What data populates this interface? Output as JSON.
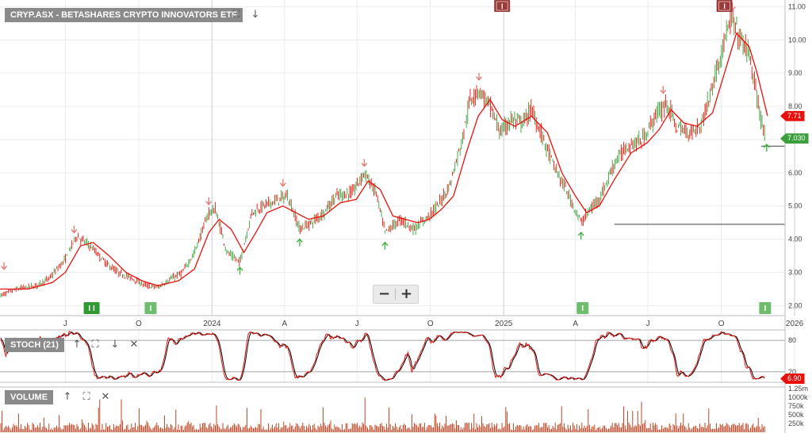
{
  "panels": {
    "price": {
      "title": "CRYP.ASX - BETASHARES CRYPTO INNOVATORS ETF"
    },
    "stoch": {
      "title": "STOCH (21)"
    },
    "volume": {
      "title": "VOLUME"
    }
  },
  "price_tags": {
    "sma": {
      "text": "7.71",
      "color": "#e8120c"
    },
    "last": {
      "text": "7.030",
      "color": "#3a9e3a"
    }
  },
  "stoch_tag": {
    "text": "6.90",
    "color": "#e8120c"
  },
  "icons": [
    "fullscreen-icon",
    "arrow-down-icon",
    "arrow-up-icon",
    "close-icon",
    "minus-icon",
    "plus-icon"
  ],
  "zoom": {
    "minus": "−",
    "plus": "+"
  },
  "colors": {
    "up": "#3a9e3a",
    "down": "#e8120c",
    "sma": "#e8120c",
    "stoch_k": "#e8120c",
    "stoch_d": "#000000",
    "volume": "#b8300a",
    "grid": "#ececec"
  },
  "chart_data": {
    "type": "line",
    "x_range": [
      "2023-04-10",
      "2025-12-20"
    ],
    "x_ticks": [
      {
        "label": "J",
        "date": "2023-07-01"
      },
      {
        "label": "O",
        "date": "2023-10-01"
      },
      {
        "label": "2024",
        "date": "2024-01-01"
      },
      {
        "label": "A",
        "date": "2024-04-01"
      },
      {
        "label": "J",
        "date": "2024-07-01"
      },
      {
        "label": "O",
        "date": "2024-10-01"
      },
      {
        "label": "2025",
        "date": "2025-01-01"
      },
      {
        "label": "A",
        "date": "2025-04-01"
      },
      {
        "label": "J",
        "date": "2025-07-01"
      },
      {
        "label": "O",
        "date": "2025-10-01"
      },
      {
        "label": "2026",
        "date": "2026-01-01"
      }
    ],
    "y_ticks": [
      "2.00",
      "3.00",
      "4.00",
      "5.00",
      "6.00",
      "7.00",
      "8.00",
      "9.00",
      "10.00",
      "11.00"
    ],
    "ylim": [
      1.7,
      11.2
    ],
    "price_path": [
      [
        "2023-04-10",
        2.3
      ],
      [
        "2023-05-01",
        2.5
      ],
      [
        "2023-05-25",
        2.6
      ],
      [
        "2023-06-10",
        2.8
      ],
      [
        "2023-07-01",
        3.4
      ],
      [
        "2023-07-15",
        4.1
      ],
      [
        "2023-08-01",
        3.8
      ],
      [
        "2023-08-20",
        3.3
      ],
      [
        "2023-09-05",
        3.0
      ],
      [
        "2023-09-25",
        2.8
      ],
      [
        "2023-10-10",
        2.6
      ],
      [
        "2023-10-25",
        2.55
      ],
      [
        "2023-11-10",
        2.8
      ],
      [
        "2023-11-25",
        3.0
      ],
      [
        "2023-12-10",
        3.6
      ],
      [
        "2023-12-28",
        4.8
      ],
      [
        "2024-01-05",
        4.9
      ],
      [
        "2024-01-20",
        3.6
      ],
      [
        "2024-02-05",
        3.3
      ],
      [
        "2024-02-20",
        4.8
      ],
      [
        "2024-03-05",
        5.0
      ],
      [
        "2024-03-25",
        5.2
      ],
      [
        "2024-04-05",
        5.3
      ],
      [
        "2024-04-20",
        4.3
      ],
      [
        "2024-05-05",
        4.5
      ],
      [
        "2024-05-20",
        4.8
      ],
      [
        "2024-06-05",
        5.3
      ],
      [
        "2024-06-25",
        5.4
      ],
      [
        "2024-07-10",
        6.0
      ],
      [
        "2024-07-25",
        5.4
      ],
      [
        "2024-08-05",
        4.2
      ],
      [
        "2024-08-25",
        4.6
      ],
      [
        "2024-09-10",
        4.3
      ],
      [
        "2024-09-25",
        4.6
      ],
      [
        "2024-10-10",
        5.0
      ],
      [
        "2024-10-25",
        5.6
      ],
      [
        "2024-11-10",
        7.0
      ],
      [
        "2024-11-20",
        8.2
      ],
      [
        "2024-12-01",
        8.5
      ],
      [
        "2024-12-15",
        8.0
      ],
      [
        "2024-12-28",
        7.2
      ],
      [
        "2025-01-10",
        7.6
      ],
      [
        "2025-01-25",
        7.5
      ],
      [
        "2025-02-05",
        7.9
      ],
      [
        "2025-02-20",
        7.0
      ],
      [
        "2025-03-05",
        6.2
      ],
      [
        "2025-03-20",
        5.5
      ],
      [
        "2025-04-08",
        4.5
      ],
      [
        "2025-04-20",
        4.9
      ],
      [
        "2025-05-05",
        5.4
      ],
      [
        "2025-05-20",
        6.3
      ],
      [
        "2025-06-05",
        6.8
      ],
      [
        "2025-06-25",
        7.0
      ],
      [
        "2025-07-10",
        7.7
      ],
      [
        "2025-07-25",
        8.1
      ],
      [
        "2025-08-05",
        7.4
      ],
      [
        "2025-08-20",
        7.2
      ],
      [
        "2025-09-05",
        7.4
      ],
      [
        "2025-09-20",
        8.6
      ],
      [
        "2025-10-05",
        10.0
      ],
      [
        "2025-10-15",
        10.6
      ],
      [
        "2025-10-25",
        10.0
      ],
      [
        "2025-11-05",
        9.6
      ],
      [
        "2025-11-15",
        8.2
      ],
      [
        "2025-11-25",
        7.03
      ]
    ],
    "sma_path": [
      [
        "2023-04-10",
        2.5
      ],
      [
        "2023-05-15",
        2.5
      ],
      [
        "2023-06-15",
        2.7
      ],
      [
        "2023-07-01",
        3.0
      ],
      [
        "2023-07-20",
        3.8
      ],
      [
        "2023-08-05",
        3.9
      ],
      [
        "2023-08-25",
        3.5
      ],
      [
        "2023-09-15",
        3.0
      ],
      [
        "2023-10-05",
        2.75
      ],
      [
        "2023-10-25",
        2.6
      ],
      [
        "2023-11-20",
        2.75
      ],
      [
        "2023-12-10",
        3.1
      ],
      [
        "2023-12-28",
        4.2
      ],
      [
        "2024-01-10",
        4.6
      ],
      [
        "2024-01-25",
        4.3
      ],
      [
        "2024-02-10",
        3.6
      ],
      [
        "2024-02-25",
        4.2
      ],
      [
        "2024-03-10",
        4.8
      ],
      [
        "2024-03-30",
        5.0
      ],
      [
        "2024-04-15",
        4.8
      ],
      [
        "2024-05-01",
        4.6
      ],
      [
        "2024-05-20",
        4.7
      ],
      [
        "2024-06-10",
        5.1
      ],
      [
        "2024-06-30",
        5.2
      ],
      [
        "2024-07-15",
        5.75
      ],
      [
        "2024-07-30",
        5.5
      ],
      [
        "2024-08-15",
        4.7
      ],
      [
        "2024-08-30",
        4.6
      ],
      [
        "2024-09-15",
        4.5
      ],
      [
        "2024-09-30",
        4.6
      ],
      [
        "2024-10-15",
        4.9
      ],
      [
        "2024-10-30",
        5.3
      ],
      [
        "2024-11-15",
        6.6
      ],
      [
        "2024-11-30",
        7.7
      ],
      [
        "2024-12-15",
        8.2
      ],
      [
        "2024-12-30",
        7.6
      ],
      [
        "2025-01-15",
        7.4
      ],
      [
        "2025-02-05",
        7.7
      ],
      [
        "2025-02-25",
        7.2
      ],
      [
        "2025-03-15",
        6.0
      ],
      [
        "2025-04-01",
        5.3
      ],
      [
        "2025-04-15",
        4.8
      ],
      [
        "2025-05-01",
        5.0
      ],
      [
        "2025-05-20",
        5.8
      ],
      [
        "2025-06-10",
        6.6
      ],
      [
        "2025-06-30",
        6.9
      ],
      [
        "2025-07-15",
        7.3
      ],
      [
        "2025-07-30",
        7.9
      ],
      [
        "2025-08-15",
        7.5
      ],
      [
        "2025-09-01",
        7.4
      ],
      [
        "2025-09-20",
        7.8
      ],
      [
        "2025-10-05",
        9.0
      ],
      [
        "2025-10-20",
        10.2
      ],
      [
        "2025-11-05",
        9.8
      ],
      [
        "2025-11-15",
        9.0
      ],
      [
        "2025-11-28",
        7.71
      ]
    ],
    "arrows_down": [
      [
        "2023-04-15",
        3.0
      ],
      [
        "2023-07-12",
        4.1
      ],
      [
        "2023-12-28",
        4.95
      ],
      [
        "2024-03-30",
        5.5
      ],
      [
        "2024-07-10",
        6.1
      ],
      [
        "2024-12-01",
        8.7
      ],
      [
        "2025-07-20",
        8.3
      ],
      [
        "2025-10-15",
        10.8
      ]
    ],
    "arrows_up": [
      [
        "2024-02-05",
        3.25
      ],
      [
        "2024-04-20",
        4.1
      ],
      [
        "2024-08-05",
        4.0
      ],
      [
        "2025-04-08",
        4.3
      ],
      [
        "2025-11-27",
        6.95
      ]
    ],
    "horizontal_lines": [
      {
        "from": "2025-11-20",
        "to": "2025-12-20",
        "y": 6.8
      },
      {
        "from": "2025-05-20",
        "to": "2025-12-20",
        "y": 4.45
      }
    ],
    "event_markers": [
      {
        "date": "2023-08-03",
        "label": "I",
        "color": "#2f9a2f",
        "double": true
      },
      {
        "date": "2023-10-16",
        "label": "I",
        "color": "#6dbd6d",
        "double": false
      },
      {
        "date": "2025-04-10",
        "label": "I",
        "color": "#6dbd6d",
        "double": false
      },
      {
        "date": "2025-11-25",
        "label": "I",
        "color": "#6dbd6d",
        "double": false
      }
    ],
    "dividend_markers": [
      {
        "date": "2024-12-30",
        "label": "I",
        "color": "#9c3b3b"
      },
      {
        "date": "2025-10-05",
        "label": "I",
        "color": "#9c3b3b"
      }
    ],
    "stoch": {
      "y_ticks": [
        "80",
        "20"
      ],
      "ylim": [
        0,
        100
      ],
      "last_value": 6.9
    },
    "volume": {
      "y_ticks": [
        "1.25m",
        "1000k",
        "750k",
        "500k",
        "250k"
      ],
      "ylim": [
        0,
        1300000
      ]
    }
  }
}
